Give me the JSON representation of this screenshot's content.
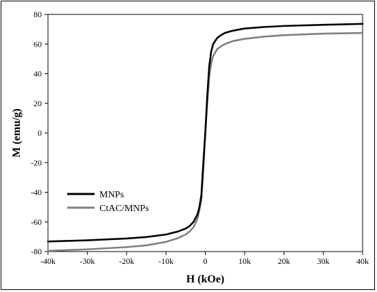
{
  "chart_data": {
    "type": "line",
    "title": "",
    "xlabel": "H (kOe)",
    "ylabel": "M (emu/g)",
    "xlim": [
      -40,
      40
    ],
    "ylim": [
      -80,
      80
    ],
    "x_ticks": [
      -40,
      -30,
      -20,
      -10,
      0,
      10,
      20,
      30,
      40
    ],
    "x_tick_labels": [
      "-40k",
      "-30k",
      "-20k",
      "-10k",
      "0",
      "10k",
      "20k",
      "30k",
      "40k"
    ],
    "y_ticks": [
      -80,
      -60,
      -40,
      -20,
      0,
      20,
      40,
      60,
      80
    ],
    "y_tick_labels": [
      "-80",
      "-60",
      "-40",
      "-20",
      "0",
      "20",
      "40",
      "60",
      "80"
    ],
    "grid": false,
    "legend_position": "lower-left",
    "series": [
      {
        "name": "MNPs",
        "color": "#000000",
        "x": [
          -40,
          -30,
          -20,
          -15,
          -10,
          -7,
          -5,
          -4,
          -3,
          -2,
          -1.5,
          -1,
          -0.5,
          0,
          0.3,
          0.5,
          1,
          1.5,
          2,
          3,
          4,
          5,
          7,
          10,
          15,
          20,
          30,
          40
        ],
        "y": [
          -73.2,
          -72.4,
          -71.2,
          -70.2,
          -68.5,
          -66.5,
          -64.5,
          -62.8,
          -60,
          -55,
          -50,
          -42,
          -20,
          0,
          15,
          25,
          45,
          55,
          60,
          64,
          66,
          67.5,
          69,
          70.5,
          71.5,
          72.2,
          73,
          73.6
        ]
      },
      {
        "name": "CtAC/MNPs",
        "color": "#808080",
        "x": [
          -40,
          -30,
          -20,
          -15,
          -10,
          -7,
          -5,
          -4,
          -3,
          -2,
          -1.5,
          -1,
          -0.5,
          0,
          0.3,
          0.5,
          1,
          1.5,
          2,
          3,
          4,
          5,
          7,
          10,
          15,
          20,
          30,
          40
        ],
        "y": [
          -79.5,
          -78.5,
          -77,
          -75.8,
          -73.5,
          -71,
          -68.5,
          -66.5,
          -63.5,
          -58,
          -52,
          -45,
          -25,
          0,
          12,
          20,
          38,
          47,
          52,
          56.5,
          58.5,
          60,
          62,
          63.5,
          65,
          66,
          67,
          67.5
        ]
      }
    ]
  }
}
